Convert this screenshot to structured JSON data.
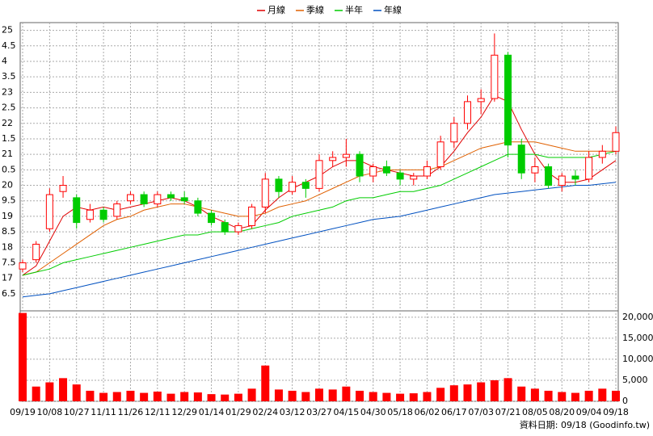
{
  "chart_data": {
    "type": "candlestick",
    "categories": [
      "09/19",
      null,
      "10/08",
      null,
      "10/27",
      null,
      "11/11",
      null,
      "11/26",
      null,
      "12/11",
      null,
      "12/29",
      null,
      "01/14",
      null,
      "01/29",
      null,
      "02/24",
      null,
      "03/12",
      null,
      "03/27",
      null,
      "04/15",
      null,
      "04/30",
      null,
      "05/18",
      null,
      "06/02",
      null,
      "06/17",
      null,
      "07/03",
      null,
      "07/21",
      null,
      "08/05",
      null,
      "08/20",
      null,
      "09/04",
      null,
      "09/18"
    ],
    "open": [
      17.3,
      17.6,
      18.6,
      19.8,
      19.6,
      18.9,
      19.2,
      19.0,
      19.5,
      19.7,
      19.4,
      19.7,
      19.6,
      19.5,
      19.1,
      18.8,
      18.5,
      18.7,
      19.3,
      20.2,
      19.8,
      20.1,
      19.9,
      20.8,
      20.9,
      21.0,
      20.3,
      20.6,
      20.4,
      20.2,
      20.3,
      20.6,
      21.4,
      22.0,
      22.7,
      22.8,
      24.2,
      21.3,
      20.4,
      20.6,
      20.0,
      20.3,
      20.2,
      20.9,
      21.1
    ],
    "high": [
      17.6,
      18.2,
      19.9,
      20.3,
      19.7,
      19.4,
      19.3,
      19.5,
      19.8,
      19.8,
      19.8,
      19.8,
      19.8,
      19.6,
      19.2,
      18.9,
      18.8,
      19.4,
      20.4,
      20.3,
      20.3,
      20.2,
      21.0,
      21.1,
      21.5,
      21.1,
      20.7,
      20.8,
      20.5,
      20.4,
      20.8,
      21.6,
      22.2,
      22.9,
      23.1,
      24.9,
      24.3,
      21.5,
      20.9,
      20.7,
      20.4,
      20.5,
      21.1,
      21.3,
      21.9
    ],
    "low": [
      17.2,
      17.5,
      18.5,
      19.6,
      18.6,
      18.8,
      18.8,
      18.9,
      19.4,
      19.3,
      19.3,
      19.5,
      19.4,
      19.0,
      18.7,
      18.4,
      18.4,
      18.6,
      19.1,
      19.6,
      19.7,
      19.6,
      19.8,
      20.6,
      20.6,
      20.1,
      20.1,
      20.3,
      20.0,
      20.0,
      20.2,
      20.5,
      21.2,
      21.8,
      22.3,
      22.7,
      20.9,
      20.2,
      20.1,
      19.9,
      19.8,
      20.0,
      20.1,
      20.7,
      21.0
    ],
    "close": [
      17.5,
      18.1,
      19.7,
      20.0,
      18.8,
      19.2,
      18.9,
      19.4,
      19.7,
      19.4,
      19.7,
      19.6,
      19.5,
      19.1,
      18.8,
      18.5,
      18.7,
      19.3,
      20.2,
      19.8,
      20.1,
      19.9,
      20.8,
      20.9,
      21.0,
      20.3,
      20.6,
      20.4,
      20.2,
      20.3,
      20.6,
      21.4,
      22.0,
      22.7,
      22.8,
      24.2,
      21.3,
      20.4,
      20.6,
      20.0,
      20.3,
      20.2,
      20.9,
      21.1,
      21.7
    ],
    "up_color": "#ff0000",
    "down_color": "#00cc00",
    "series": [
      {
        "name": "月線",
        "color": "#e00000",
        "values": [
          17.1,
          17.4,
          18.2,
          19.0,
          19.3,
          19.2,
          19.3,
          19.2,
          19.3,
          19.4,
          19.5,
          19.6,
          19.5,
          19.3,
          19.0,
          18.8,
          18.6,
          18.7,
          19.2,
          19.6,
          19.9,
          20.1,
          20.3,
          20.6,
          20.8,
          20.8,
          20.6,
          20.5,
          20.4,
          20.3,
          20.3,
          20.6,
          21.1,
          21.7,
          22.2,
          22.9,
          22.7,
          21.8,
          21.0,
          20.4,
          20.1,
          20.1,
          20.2,
          20.5,
          20.8
        ]
      },
      {
        "name": "季線",
        "color": "#e06000",
        "values": [
          17.1,
          17.2,
          17.5,
          17.8,
          18.1,
          18.4,
          18.7,
          18.9,
          19.0,
          19.2,
          19.3,
          19.4,
          19.4,
          19.3,
          19.2,
          19.1,
          19.0,
          19.0,
          19.1,
          19.3,
          19.4,
          19.5,
          19.7,
          19.9,
          20.1,
          20.3,
          20.4,
          20.5,
          20.5,
          20.5,
          20.5,
          20.6,
          20.8,
          21.0,
          21.2,
          21.3,
          21.4,
          21.4,
          21.4,
          21.3,
          21.2,
          21.1,
          21.1,
          21.1,
          21.1
        ]
      },
      {
        "name": "半年",
        "color": "#00cc00",
        "values": [
          17.1,
          17.2,
          17.3,
          17.5,
          17.6,
          17.7,
          17.8,
          17.9,
          18.0,
          18.1,
          18.2,
          18.3,
          18.4,
          18.4,
          18.5,
          18.5,
          18.5,
          18.6,
          18.7,
          18.8,
          19.0,
          19.1,
          19.2,
          19.3,
          19.5,
          19.6,
          19.6,
          19.7,
          19.8,
          19.8,
          19.9,
          20.0,
          20.2,
          20.4,
          20.6,
          20.8,
          21.0,
          21.0,
          21.0,
          20.9,
          20.9,
          20.9,
          20.9,
          21.0,
          21.1
        ]
      },
      {
        "name": "年線",
        "color": "#0050c0",
        "values": [
          16.4,
          16.45,
          16.5,
          16.6,
          16.7,
          16.8,
          16.9,
          17.0,
          17.1,
          17.2,
          17.3,
          17.4,
          17.5,
          17.6,
          17.7,
          17.8,
          17.9,
          18.0,
          18.1,
          18.2,
          18.3,
          18.4,
          18.5,
          18.6,
          18.7,
          18.8,
          18.9,
          18.95,
          19.0,
          19.1,
          19.2,
          19.3,
          19.4,
          19.5,
          19.6,
          19.7,
          19.75,
          19.8,
          19.85,
          19.9,
          19.95,
          20.0,
          20.0,
          20.05,
          20.1
        ]
      }
    ],
    "ylim": [
      15.95,
      25.25
    ],
    "yticks": [
      25,
      {
        "value": 24.5,
        "label": "4.5"
      },
      {
        "value": 24,
        "label": "4"
      },
      {
        "value": 23.5,
        "label": "3.5"
      },
      23,
      {
        "value": 22.5,
        "label": "2.5"
      },
      22,
      {
        "value": 21.5,
        "label": "1.5"
      },
      21,
      {
        "value": 20.5,
        "label": "0.5"
      },
      20,
      {
        "value": 19.5,
        "label": "9.5"
      },
      19,
      {
        "value": 18.5,
        "label": "8.5"
      },
      18,
      {
        "value": 17.5,
        "label": "7.5"
      },
      17,
      {
        "value": 16.5,
        "label": "6.5"
      }
    ],
    "grid": true,
    "volume": {
      "color": "#ff0000",
      "values": [
        21000,
        3500,
        4500,
        5500,
        4000,
        2500,
        2000,
        2200,
        2500,
        2000,
        2300,
        1800,
        2200,
        2100,
        1700,
        1600,
        1800,
        3000,
        8500,
        2800,
        2500,
        2200,
        3000,
        2800,
        3500,
        2500,
        2200,
        2000,
        1800,
        1900,
        2200,
        3200,
        3800,
        4000,
        4500,
        5000,
        5500,
        3500,
        3000,
        2500,
        2200,
        2000,
        2500,
        3000,
        2500
      ],
      "ylim": [
        0,
        21500
      ],
      "yticks": [
        0,
        {
          "value": 5000,
          "label": "5,000"
        },
        {
          "value": 10000,
          "label": "10,000"
        },
        {
          "value": 15000,
          "label": "15,000"
        },
        {
          "value": 20000,
          "label": "20,000"
        }
      ]
    },
    "footnote": "資料日期: 09/18  (Goodinfo.tw)"
  }
}
